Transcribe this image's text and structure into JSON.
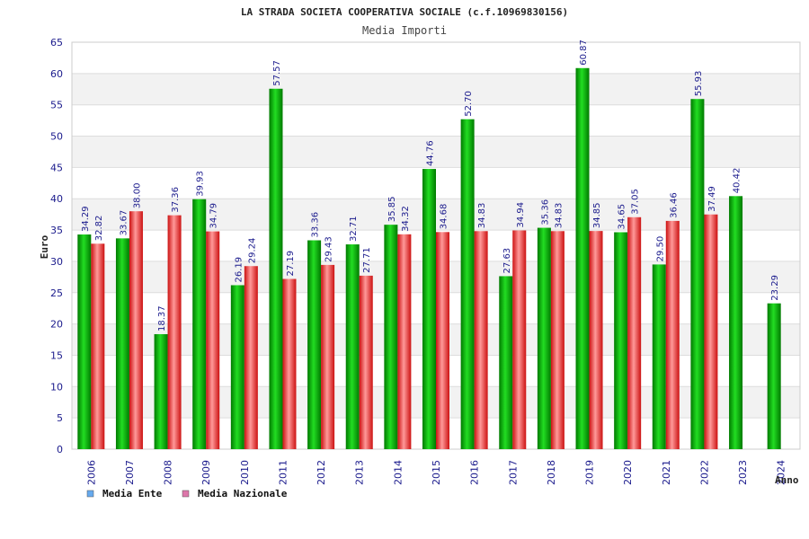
{
  "chart_data": {
    "type": "bar",
    "title": "LA STRADA SOCIETA COOPERATIVA SOCIALE (c.f.10969830156)",
    "subtitle": "Media Importi",
    "xlabel": "Anno",
    "ylabel": "Euro",
    "ylim": [
      0,
      65
    ],
    "ytick_step": 5,
    "grid": true,
    "legend_position": "bottom-left",
    "categories": [
      "2006",
      "2007",
      "2008",
      "2009",
      "2010",
      "2011",
      "2012",
      "2013",
      "2014",
      "2015",
      "2016",
      "2017",
      "2018",
      "2019",
      "2020",
      "2021",
      "2022",
      "2023",
      "2024"
    ],
    "series": [
      {
        "name": "Media Ente",
        "color": "#00bb00",
        "legend_color": "#66aaee",
        "values": [
          34.29,
          33.67,
          18.37,
          39.93,
          26.19,
          57.57,
          33.36,
          32.71,
          35.85,
          44.76,
          52.7,
          27.63,
          35.36,
          60.87,
          34.65,
          29.5,
          55.93,
          40.42,
          23.29
        ],
        "labels": [
          "34.29",
          "33.67",
          "18.37",
          "39.93",
          "26.19",
          "57.57",
          "33.36",
          "32.71",
          "35.85",
          "44.76",
          "52.70",
          "27.63",
          "35.36",
          "60.87",
          "34.65",
          "29.50",
          "55.93",
          "40.42",
          "23.29"
        ]
      },
      {
        "name": "Media Nazionale",
        "color": "#ee2222",
        "legend_color": "#dd77aa",
        "values": [
          32.82,
          38.0,
          37.36,
          34.79,
          29.24,
          27.19,
          29.43,
          27.71,
          34.32,
          34.68,
          34.83,
          34.94,
          34.83,
          34.85,
          37.05,
          36.46,
          37.49,
          null,
          null
        ],
        "labels": [
          "32.82",
          "38.00",
          "37.36",
          "34.79",
          "29.24",
          "27.19",
          "29.43",
          "27.71",
          "34.32",
          "34.68",
          "34.83",
          "34.94",
          "34.83",
          "34.85",
          "37.05",
          "36.46",
          "37.49",
          null,
          null
        ]
      }
    ]
  }
}
